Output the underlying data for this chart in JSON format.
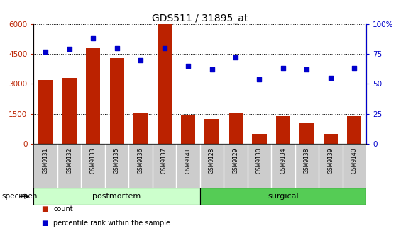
{
  "title": "GDS511 / 31895_at",
  "samples": [
    "GSM9131",
    "GSM9132",
    "GSM9133",
    "GSM9135",
    "GSM9136",
    "GSM9137",
    "GSM9141",
    "GSM9128",
    "GSM9129",
    "GSM9130",
    "GSM9134",
    "GSM9138",
    "GSM9139",
    "GSM9140"
  ],
  "counts": [
    3200,
    3300,
    4800,
    4300,
    1550,
    6000,
    1450,
    1250,
    1550,
    500,
    1400,
    1050,
    500,
    1380
  ],
  "percentiles": [
    77,
    79,
    88,
    80,
    70,
    80,
    65,
    62,
    72,
    54,
    63,
    62,
    55,
    63
  ],
  "bar_color": "#bb2200",
  "dot_color": "#0000cc",
  "ylim_left": [
    0,
    6000
  ],
  "ylim_right": [
    0,
    100
  ],
  "yticks_left": [
    0,
    1500,
    3000,
    4500,
    6000
  ],
  "ytick_labels_left": [
    "0",
    "1500",
    "3000",
    "4500",
    "6000"
  ],
  "yticks_right": [
    0,
    25,
    50,
    75,
    100
  ],
  "ytick_labels_right": [
    "0",
    "25",
    "50",
    "75",
    "100%"
  ],
  "groups": [
    {
      "label": "postmortem",
      "start": 0,
      "end": 7,
      "color_light": "#ccffcc",
      "color_dark": "#55cc55"
    },
    {
      "label": "surgical",
      "start": 7,
      "end": 14,
      "color_light": "#55cc55",
      "color_dark": "#55cc55"
    }
  ],
  "tick_area_color": "#cccccc",
  "legend_count_color": "#bb2200",
  "legend_pct_color": "#0000cc",
  "specimen_label": "specimen"
}
